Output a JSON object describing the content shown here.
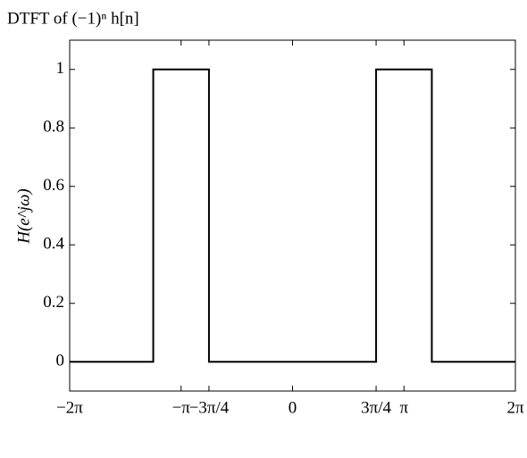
{
  "chart_data": {
    "type": "line",
    "title": "DTFT of (−1)ⁿ h[n]",
    "ylabel": "H(e^jω)",
    "x": [
      -6.2832,
      -3.927,
      -3.927,
      -2.3562,
      -2.3562,
      2.3562,
      2.3562,
      3.927,
      3.927,
      6.2832
    ],
    "series": [
      {
        "name": "H",
        "color": "#000000",
        "values": [
          0,
          0,
          1,
          1,
          0,
          0,
          1,
          1,
          0,
          0
        ]
      }
    ],
    "xlim": [
      -6.2832,
      6.2832
    ],
    "xticks": [
      {
        "value": -6.2832,
        "label": "−2π"
      },
      {
        "value": -3.1416,
        "label": "−π"
      },
      {
        "value": -2.3562,
        "label": "−3π/4"
      },
      0,
      {
        "value": 2.3562,
        "label": "3π/4"
      },
      {
        "value": 3.1416,
        "label": "π"
      },
      {
        "value": 6.2832,
        "label": "2π"
      }
    ],
    "ylim": [
      -0.1,
      1.1
    ],
    "yticks": [
      0,
      0.2,
      0.4,
      0.6,
      0.8,
      1
    ],
    "grid": false
  }
}
